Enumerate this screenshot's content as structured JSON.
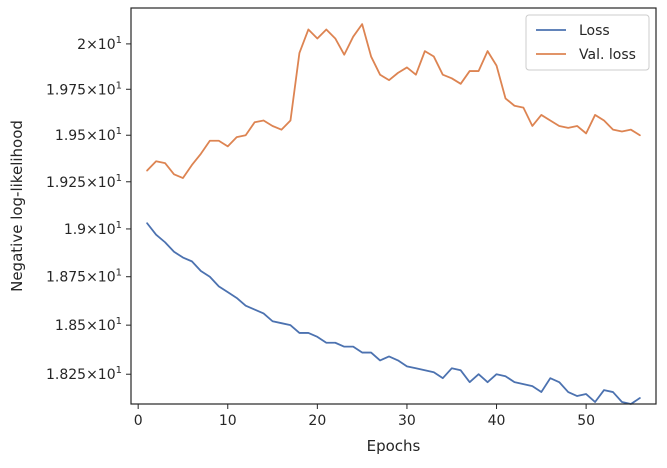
{
  "chart_data": {
    "type": "line",
    "title": "",
    "xlabel": "Epochs",
    "ylabel": "Negative log-likelihood",
    "xlim": [
      -0.8,
      57.8
    ],
    "ylim": [
      18.1,
      20.2
    ],
    "yscale": "log",
    "grid": false,
    "legend_position": "top-right",
    "x_ticks": [
      0,
      10,
      20,
      30,
      40,
      50
    ],
    "y_ticks": [
      {
        "value": 18.25,
        "mantissa": "1.825",
        "exponent": "1"
      },
      {
        "value": 18.5,
        "mantissa": "1.85",
        "exponent": "1"
      },
      {
        "value": 18.75,
        "mantissa": "1.875",
        "exponent": "1"
      },
      {
        "value": 19.0,
        "mantissa": "1.9",
        "exponent": "1"
      },
      {
        "value": 19.25,
        "mantissa": "1.925",
        "exponent": "1"
      },
      {
        "value": 19.5,
        "mantissa": "1.95",
        "exponent": "1"
      },
      {
        "value": 19.75,
        "mantissa": "1.975",
        "exponent": "1"
      },
      {
        "value": 20.0,
        "mantissa": "2",
        "exponent": "1"
      }
    ],
    "x": [
      1,
      2,
      3,
      4,
      5,
      6,
      7,
      8,
      9,
      10,
      11,
      12,
      13,
      14,
      15,
      16,
      17,
      18,
      19,
      20,
      21,
      22,
      23,
      24,
      25,
      26,
      27,
      28,
      29,
      30,
      31,
      32,
      33,
      34,
      35,
      36,
      37,
      38,
      39,
      40,
      41,
      42,
      43,
      44,
      45,
      46,
      47,
      48,
      49,
      50,
      51,
      52,
      53,
      54,
      55,
      56
    ],
    "series": [
      {
        "name": "Loss",
        "color": "#4c72b0",
        "values": [
          19.03,
          18.97,
          18.93,
          18.88,
          18.85,
          18.83,
          18.78,
          18.75,
          18.7,
          18.67,
          18.64,
          18.6,
          18.58,
          18.56,
          18.52,
          18.51,
          18.5,
          18.46,
          18.46,
          18.44,
          18.41,
          18.41,
          18.39,
          18.39,
          18.36,
          18.36,
          18.32,
          18.34,
          18.32,
          18.29,
          18.28,
          18.27,
          18.26,
          18.23,
          18.28,
          18.27,
          18.21,
          18.25,
          18.21,
          18.25,
          18.24,
          18.21,
          18.2,
          18.19,
          18.16,
          18.23,
          18.21,
          18.16,
          18.14,
          18.15,
          18.11,
          18.17,
          18.16,
          18.11,
          18.1,
          18.13
        ]
      },
      {
        "name": "Val. loss",
        "color": "#dd8452",
        "values": [
          19.31,
          19.36,
          19.35,
          19.29,
          19.27,
          19.34,
          19.4,
          19.47,
          19.47,
          19.44,
          19.49,
          19.5,
          19.57,
          19.58,
          19.55,
          19.53,
          19.58,
          19.95,
          20.08,
          20.03,
          20.08,
          20.03,
          19.94,
          20.04,
          20.11,
          19.93,
          19.83,
          19.8,
          19.84,
          19.87,
          19.83,
          19.96,
          19.93,
          19.83,
          19.81,
          19.78,
          19.85,
          19.85,
          19.96,
          19.88,
          19.7,
          19.66,
          19.65,
          19.55,
          19.61,
          19.58,
          19.55,
          19.54,
          19.55,
          19.51,
          19.61,
          19.58,
          19.53,
          19.52,
          19.53,
          19.5
        ]
      }
    ]
  }
}
